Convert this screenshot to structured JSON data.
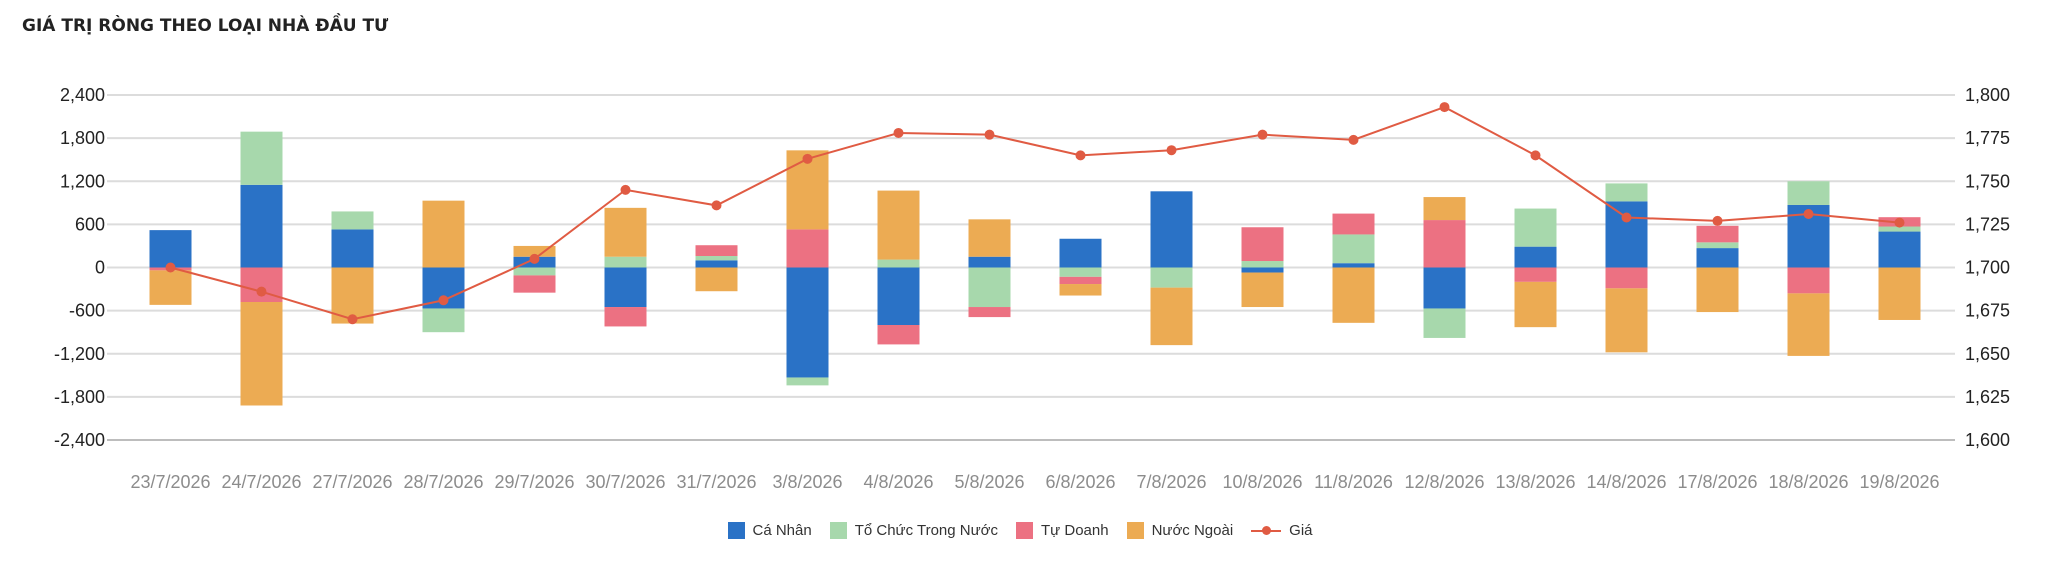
{
  "chart_title": "GIÁ TRỊ RÒNG THEO LOẠI NHÀ ĐẦU TƯ",
  "chart_data": {
    "type": "bar",
    "title": "GIÁ TRỊ RÒNG THEO LOẠI NHÀ ĐẦU TƯ",
    "stacked": true,
    "categories": [
      "23/7/2026",
      "24/7/2026",
      "27/7/2026",
      "28/7/2026",
      "29/7/2026",
      "30/7/2026",
      "31/7/2026",
      "3/8/2026",
      "4/8/2026",
      "5/8/2026",
      "6/8/2026",
      "7/8/2026",
      "10/8/2026",
      "11/8/2026",
      "12/8/2026",
      "13/8/2026",
      "14/8/2026",
      "17/8/2026",
      "18/8/2026",
      "19/8/2026"
    ],
    "y_left": {
      "ylim": [
        -2400,
        2400
      ],
      "ticks": [
        2400,
        1800,
        1200,
        600,
        0,
        -600,
        -1200,
        -1800,
        -2400
      ],
      "tick_labels": [
        "2,400",
        "1,800",
        "1,200",
        "600",
        "0",
        "-600",
        "-1,200",
        "-1,800",
        "-2,400"
      ]
    },
    "y_right": {
      "ylim": [
        1600,
        1800
      ],
      "ticks": [
        1800,
        1775,
        1750,
        1725,
        1700,
        1675,
        1650,
        1625,
        1600
      ],
      "tick_labels": [
        "1,800",
        "1,775",
        "1,750",
        "1,725",
        "1,700",
        "1,675",
        "1,650",
        "1,625",
        "1,600"
      ]
    },
    "series": [
      {
        "name": "Cá Nhân",
        "color": "#2a72c6",
        "values": [
          520,
          1150,
          530,
          -570,
          150,
          -550,
          100,
          -1530,
          -800,
          150,
          400,
          1060,
          -70,
          60,
          -570,
          290,
          920,
          270,
          870,
          500
        ]
      },
      {
        "name": "Tổ Chức Trong Nước",
        "color": "#a7d8ac",
        "values": [
          0,
          740,
          250,
          -330,
          -110,
          150,
          60,
          -110,
          110,
          -550,
          -130,
          -280,
          90,
          400,
          -410,
          530,
          250,
          80,
          330,
          70
        ]
      },
      {
        "name": "Tự Doanh",
        "color": "#ec7182",
        "values": [
          -40,
          -480,
          0,
          0,
          -240,
          -270,
          150,
          530,
          -270,
          -140,
          -100,
          0,
          470,
          290,
          660,
          -200,
          -290,
          230,
          -360,
          130
        ]
      },
      {
        "name": "Nước Ngoài",
        "color": "#ecab53",
        "values": [
          -480,
          -1440,
          -780,
          930,
          150,
          680,
          -330,
          1100,
          960,
          520,
          -160,
          -800,
          -480,
          -770,
          320,
          -630,
          -890,
          -620,
          -870,
          -730
        ]
      }
    ],
    "line_series": {
      "name": "Giá",
      "color": "#e05b43",
      "axis": "right",
      "values": [
        1700,
        1686,
        1670,
        1681,
        1705,
        1745,
        1736,
        1763,
        1778,
        1777,
        1765,
        1768,
        1777,
        1774,
        1793,
        1765,
        1729,
        1727,
        1731,
        1726
      ]
    },
    "legend": {
      "position": "bottom"
    },
    "grid": true
  }
}
